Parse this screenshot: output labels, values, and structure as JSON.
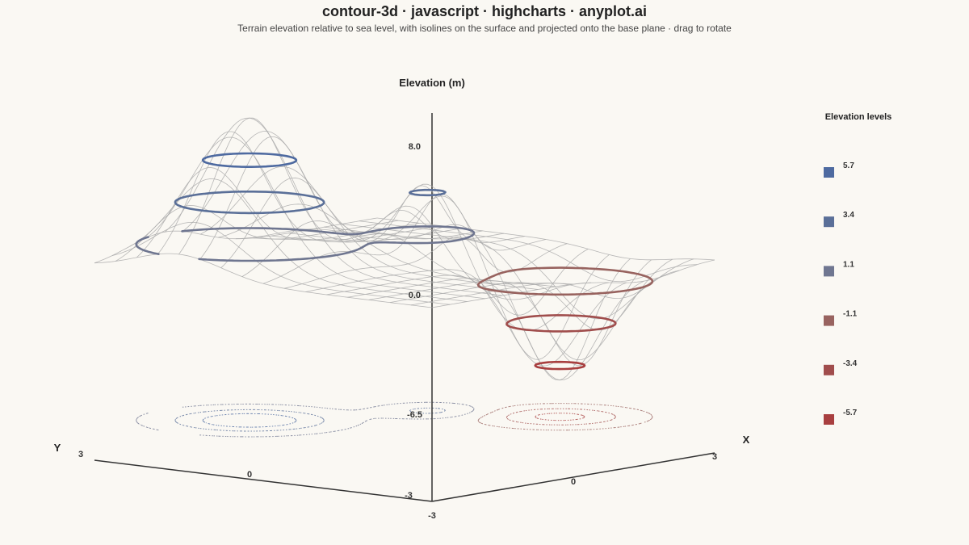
{
  "page": {
    "title": "contour-3d · javascript · highcharts · anyplot.ai",
    "subtitle": "Terrain elevation relative to sea level, with isolines on the surface and projected onto the base plane · drag to rotate"
  },
  "chart_data": {
    "type": "surface-3d-contour",
    "title": "contour-3d · javascript · highcharts · anyplot.ai",
    "subtitle": "Terrain elevation relative to sea level, with isolines on the surface and projected onto the base plane · drag to rotate",
    "xlabel": "X",
    "ylabel": "Y",
    "zlabel": "Elevation (m)",
    "x_ticks": [
      "-3",
      "0",
      "3"
    ],
    "y_ticks": [
      "-3",
      "0",
      "3"
    ],
    "z_ticks": [
      "8.0",
      "0.0",
      "-6.5"
    ],
    "xlim": [
      -3,
      3
    ],
    "ylim": [
      -3,
      3
    ],
    "zlim": [
      -6.5,
      8.0
    ],
    "surface": {
      "peak": {
        "x": -1.5,
        "y": 1.5,
        "z": 8.0
      },
      "secondary_peak": {
        "x": 0.8,
        "y": 0.2,
        "z": 4.0
      },
      "pit": {
        "x": 1.5,
        "y": -1.5,
        "z": -6.5
      }
    },
    "legend": {
      "title": "Elevation levels",
      "position": "right",
      "levels": [
        {
          "label": "5.7",
          "color": "#4e6aa0"
        },
        {
          "label": "3.4",
          "color": "#5a6f98"
        },
        {
          "label": "1.1",
          "color": "#6f7690"
        },
        {
          "label": "-1.1",
          "color": "#98635f"
        },
        {
          "label": "-3.4",
          "color": "#a04d4c"
        },
        {
          "label": "-5.7",
          "color": "#a83f3f"
        }
      ]
    },
    "colors": {
      "background": "#faf8f3",
      "mesh": "#aaaaaa",
      "axis": "#333333"
    }
  }
}
